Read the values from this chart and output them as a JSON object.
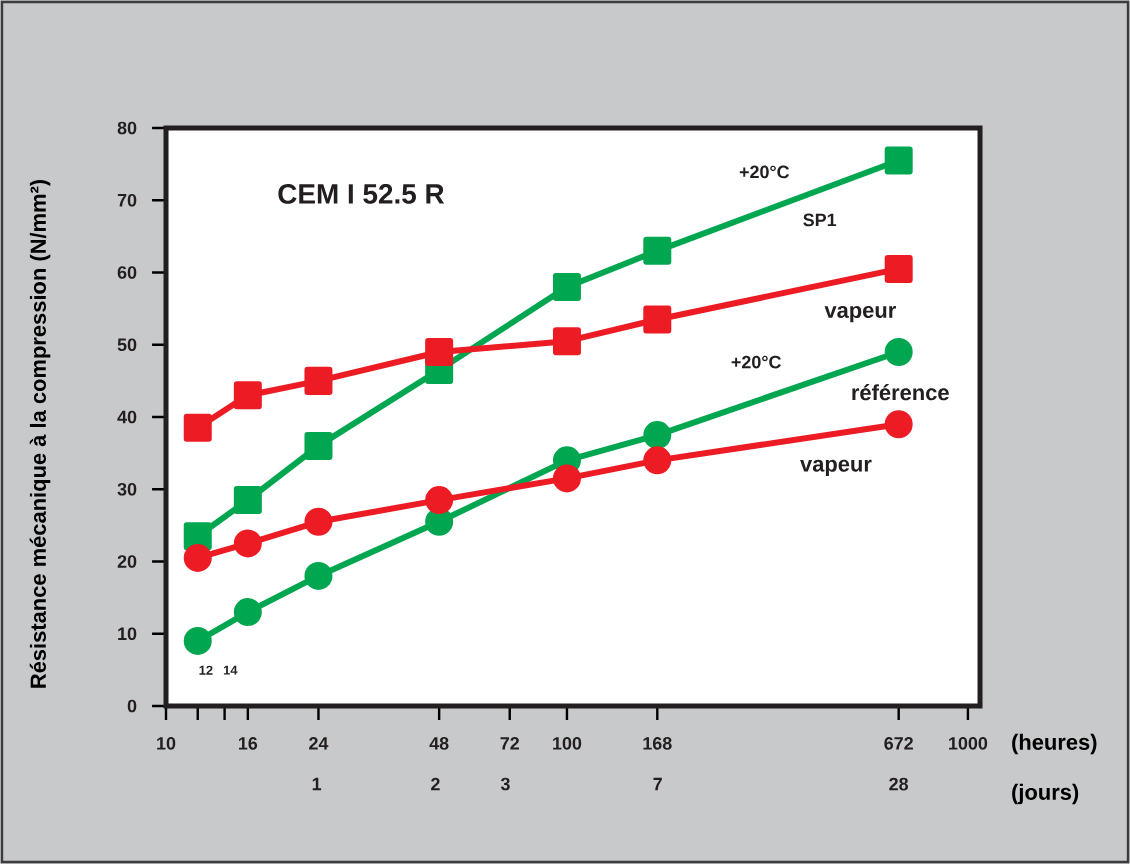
{
  "chart_data": {
    "type": "line",
    "title": "CEM I 52.5 R",
    "ylabel": "Résistance mécanique à la compression (N/mm²)",
    "xlabel": "(heures)",
    "x2label": "(jours)",
    "log": "x",
    "xlim": [
      10,
      1072
    ],
    "ylim": [
      0,
      80
    ],
    "xticks": [
      10,
      {
        "value": 12,
        "label": null
      },
      {
        "value": 14,
        "label": null
      },
      16,
      24,
      48,
      72,
      100,
      168,
      672,
      1000
    ],
    "yticks": [
      0,
      10,
      20,
      30,
      40,
      50,
      60,
      70,
      80
    ],
    "grid": false,
    "line_style": "solid",
    "x": [
      12,
      16,
      24,
      48,
      100,
      168,
      672
    ],
    "series": [
      {
        "color": "#00a650",
        "marker": "square",
        "values": [
          23.5,
          28.5,
          36,
          46.5,
          58,
          63,
          75.5
        ]
      },
      {
        "color": "#ed1c24",
        "marker": "square",
        "values": [
          38.5,
          43,
          45,
          49,
          50.5,
          53.5,
          60.5
        ]
      },
      {
        "color": "#00a650",
        "marker": "circle",
        "values": [
          9,
          13,
          18,
          25.5,
          34,
          37.5,
          49
        ]
      },
      {
        "color": "#ed1c24",
        "marker": "circle",
        "values": [
          20.5,
          22.5,
          25.5,
          28.5,
          31.5,
          34,
          39
        ]
      }
    ],
    "annotations": [
      "+20°C",
      "SP1",
      "vapeur",
      "+20°C",
      "référence",
      "vapeur",
      "12",
      "14",
      "1",
      "2",
      "3",
      "7",
      "28"
    ]
  }
}
